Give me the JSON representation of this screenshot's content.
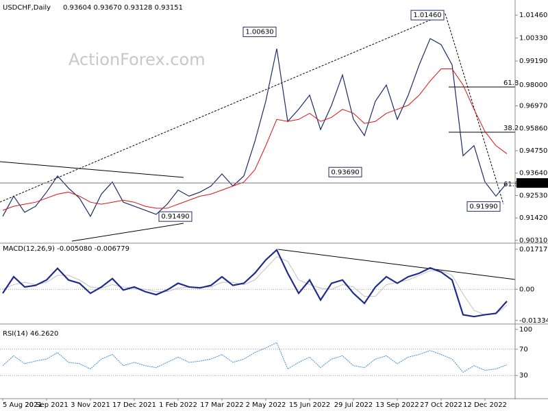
{
  "chart_data": [
    {
      "type": "line",
      "title": "USDCHF,Daily",
      "subtitle": "0.93604 0.93670 0.93128 0.93151",
      "watermark": "ActionForex.com",
      "x": [
        0,
        8,
        16,
        24,
        32,
        40,
        48,
        56,
        64,
        72,
        80,
        88,
        96,
        104,
        112,
        120,
        128,
        136,
        144,
        152,
        160,
        168,
        176,
        184,
        192,
        200,
        208,
        216,
        224,
        232,
        240,
        248,
        256,
        264,
        272,
        280,
        288,
        296,
        304,
        312,
        320,
        328,
        336,
        344,
        352,
        360,
        368
      ],
      "xlim": [
        -2,
        374
      ],
      "xticks": [
        {
          "value": 0,
          "label": "5 Aug 2021"
        },
        {
          "value": 32,
          "label": "20 Sep 2021"
        },
        {
          "value": 64,
          "label": "3 Nov 2021"
        },
        {
          "value": 96,
          "label": "17 Dec 2021"
        },
        {
          "value": 128,
          "label": "1 Feb 2022"
        },
        {
          "value": 160,
          "label": "17 Mar 2022"
        },
        {
          "value": 192,
          "label": "2 May 2022"
        },
        {
          "value": 224,
          "label": "15 Jun 2022"
        },
        {
          "value": 256,
          "label": "29 Jul 2022"
        },
        {
          "value": 288,
          "label": "13 Sep 2022"
        },
        {
          "value": 320,
          "label": "27 Oct 2022"
        },
        {
          "value": 352,
          "label": "12 Dec 2022"
        }
      ],
      "ylim": [
        0.9024,
        1.0204
      ],
      "yticks": [
        {
          "value": 1.0146,
          "label": "1.01460"
        },
        {
          "value": 1.0033,
          "label": "1.00330"
        },
        {
          "value": 0.9919,
          "label": "0.99190"
        },
        {
          "value": 0.98,
          "label": "0.98000"
        },
        {
          "value": 0.9697,
          "label": "0.96970"
        },
        {
          "value": 0.9586,
          "label": "0.95860"
        },
        {
          "value": 0.9475,
          "label": "0.94750"
        },
        {
          "value": 0.9364,
          "label": "0.93640"
        },
        {
          "value": 0.9253,
          "label": "0.92530"
        },
        {
          "value": 0.9142,
          "label": "0.91420"
        },
        {
          "value": 0.9031,
          "label": "0.90310"
        }
      ],
      "grid": false,
      "series": [
        {
          "color": "#1b2a6b",
          "values": [
            0.915,
            0.925,
            0.917,
            0.92,
            0.927,
            0.935,
            0.929,
            0.924,
            0.915,
            0.926,
            0.932,
            0.922,
            0.92,
            0.918,
            0.916,
            0.921,
            0.928,
            0.925,
            0.927,
            0.93,
            0.936,
            0.93,
            0.935,
            0.952,
            0.972,
            0.998,
            0.962,
            0.968,
            0.975,
            0.958,
            0.97,
            0.985,
            0.963,
            0.955,
            0.972,
            0.98,
            0.963,
            0.975,
            0.99,
            1.003,
            1.0,
            0.99,
            0.945,
            0.95,
            0.932,
            0.925,
            0.9315
          ]
        },
        {
          "color": "#e01010",
          "values": [
            0.918,
            0.92,
            0.921,
            0.922,
            0.924,
            0.926,
            0.927,
            0.925,
            0.922,
            0.921,
            0.922,
            0.923,
            0.922,
            0.92,
            0.919,
            0.919,
            0.921,
            0.923,
            0.925,
            0.926,
            0.928,
            0.93,
            0.932,
            0.938,
            0.95,
            0.963,
            0.962,
            0.963,
            0.966,
            0.962,
            0.964,
            0.968,
            0.966,
            0.961,
            0.962,
            0.966,
            0.968,
            0.97,
            0.975,
            0.982,
            0.988,
            0.988,
            0.98,
            0.968,
            0.957,
            0.95,
            0.946
          ]
        }
      ],
      "annotations": [
        {
          "value": 1.0063,
          "label": "1.00630"
        },
        {
          "value": 1.0146,
          "label": "1.01460"
        },
        {
          "value": 0.9369,
          "label": "0.93690"
        },
        {
          "value": 0.9199,
          "label": "0.91990"
        },
        {
          "value": 0.9149,
          "label": "0.91490"
        }
      ],
      "fib_labels": [
        "61.8",
        "38.2",
        "61.8"
      ],
      "last_price": {
        "value": 0.93151,
        "label": "0.93151"
      }
    },
    {
      "type": "line",
      "title": "MACD(12,26,9) -0.005080 -0.006779",
      "x": [
        0,
        8,
        16,
        24,
        32,
        40,
        48,
        56,
        64,
        72,
        80,
        88,
        96,
        104,
        112,
        120,
        128,
        136,
        144,
        152,
        160,
        168,
        176,
        184,
        192,
        200,
        208,
        216,
        224,
        232,
        240,
        248,
        256,
        264,
        272,
        280,
        288,
        296,
        304,
        312,
        320,
        328,
        336,
        344,
        352,
        360,
        368
      ],
      "xlim": [
        -2,
        374
      ],
      "ylim": [
        -0.0137,
        0.0192
      ],
      "yticks": [
        {
          "value": 0.017176,
          "label": "0.017176"
        },
        {
          "value": 0,
          "label": "0.00"
        },
        {
          "value": -0.01334,
          "label": "-0.01334"
        }
      ],
      "grid": true,
      "series": [
        {
          "color": "#c0c0c0",
          "values": [
            0.0,
            0.002,
            0.003,
            0.002,
            0.003,
            0.006,
            0.006,
            0.004,
            0.001,
            0.0005,
            0.002,
            0.001,
            0.0005,
            0.0,
            -0.001,
            -0.001,
            0.0005,
            0.001,
            0.001,
            0.001,
            0.003,
            0.003,
            0.002,
            0.004,
            0.009,
            0.014,
            0.012,
            0.004,
            0.002,
            0.0005,
            0.0,
            0.002,
            0.001,
            -0.003,
            -0.003,
            0.002,
            0.003,
            0.004,
            0.006,
            0.008,
            0.008,
            0.006,
            -0.002,
            -0.009,
            -0.011,
            -0.0105,
            -0.0068
          ]
        },
        {
          "color": "#1e2a8c",
          "values": [
            -0.0017,
            0.0054,
            0.001,
            0.0017,
            0.004,
            0.009,
            0.004,
            0.0026,
            -0.0017,
            0.001,
            0.0046,
            -0.0003,
            0.001,
            -0.001,
            -0.0023,
            -0.0003,
            0.0026,
            0.001,
            0.0006,
            0.0017,
            0.0054,
            0.0017,
            0.0026,
            0.0069,
            0.0126,
            0.0169,
            0.0069,
            -0.0017,
            0.004,
            -0.0046,
            0.0026,
            0.004,
            -0.0017,
            -0.006,
            0.001,
            0.0054,
            0.0026,
            0.0054,
            0.0069,
            0.0092,
            0.0074,
            0.004,
            -0.0109,
            -0.0117,
            -0.0109,
            -0.0103,
            -0.0051
          ]
        }
      ]
    },
    {
      "type": "line",
      "title": "RSI(14) 46.2620",
      "x": [
        0,
        8,
        16,
        24,
        32,
        40,
        48,
        56,
        64,
        72,
        80,
        88,
        96,
        104,
        112,
        120,
        128,
        136,
        144,
        152,
        160,
        168,
        176,
        184,
        192,
        200,
        208,
        216,
        224,
        232,
        240,
        248,
        256,
        264,
        272,
        280,
        288,
        296,
        304,
        312,
        320,
        328,
        336,
        344,
        352,
        360,
        368
      ],
      "xlim": [
        -2,
        374
      ],
      "ylim": [
        0,
        100
      ],
      "yticks": [
        100,
        70,
        30
      ],
      "grid": true,
      "series": [
        {
          "color": "#3a8fd6",
          "values": [
            45,
            60,
            48,
            52,
            55,
            65,
            50,
            48,
            40,
            55,
            62,
            45,
            50,
            45,
            42,
            50,
            58,
            50,
            52,
            55,
            62,
            50,
            55,
            65,
            72,
            80,
            40,
            50,
            58,
            42,
            55,
            60,
            45,
            42,
            55,
            60,
            48,
            58,
            62,
            68,
            62,
            55,
            35,
            45,
            38,
            40,
            46.26
          ]
        }
      ]
    }
  ]
}
